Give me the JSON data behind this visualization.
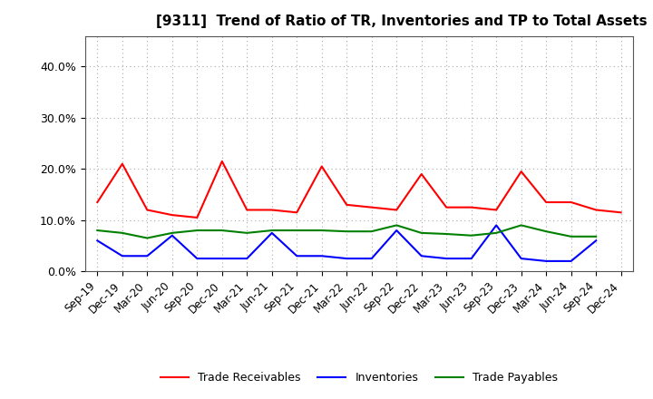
{
  "title": "[9311]  Trend of Ratio of TR, Inventories and TP to Total Assets",
  "x_labels": [
    "Sep-19",
    "Dec-19",
    "Mar-20",
    "Jun-20",
    "Sep-20",
    "Dec-20",
    "Mar-21",
    "Jun-21",
    "Sep-21",
    "Dec-21",
    "Mar-22",
    "Jun-22",
    "Sep-22",
    "Dec-22",
    "Mar-23",
    "Jun-23",
    "Sep-23",
    "Dec-23",
    "Mar-24",
    "Jun-24",
    "Sep-24",
    "Dec-24"
  ],
  "trade_receivables": [
    0.135,
    0.21,
    0.12,
    0.11,
    0.105,
    0.215,
    0.12,
    0.12,
    0.115,
    0.205,
    0.13,
    0.125,
    0.12,
    0.19,
    0.125,
    0.125,
    0.12,
    0.195,
    0.135,
    0.135,
    0.12,
    0.115
  ],
  "inventories": [
    0.06,
    0.03,
    0.03,
    0.07,
    0.025,
    0.025,
    0.025,
    0.075,
    0.03,
    0.03,
    0.025,
    0.025,
    0.08,
    0.03,
    0.025,
    0.025,
    0.09,
    0.025,
    0.02,
    0.02,
    0.06,
    null
  ],
  "trade_payables": [
    0.08,
    0.075,
    0.065,
    0.075,
    0.08,
    0.08,
    0.075,
    0.08,
    0.08,
    0.08,
    0.078,
    0.078,
    0.09,
    0.075,
    0.073,
    0.07,
    0.075,
    0.09,
    0.078,
    0.068,
    0.068,
    null
  ],
  "tr_color": "#ff0000",
  "inv_color": "#0000ff",
  "tp_color": "#008000",
  "ylim": [
    0.0,
    0.46
  ],
  "yticks": [
    0.0,
    0.1,
    0.2,
    0.3,
    0.4
  ],
  "background_color": "#ffffff",
  "grid_color": "#aaaaaa",
  "legend_labels": [
    "Trade Receivables",
    "Inventories",
    "Trade Payables"
  ]
}
